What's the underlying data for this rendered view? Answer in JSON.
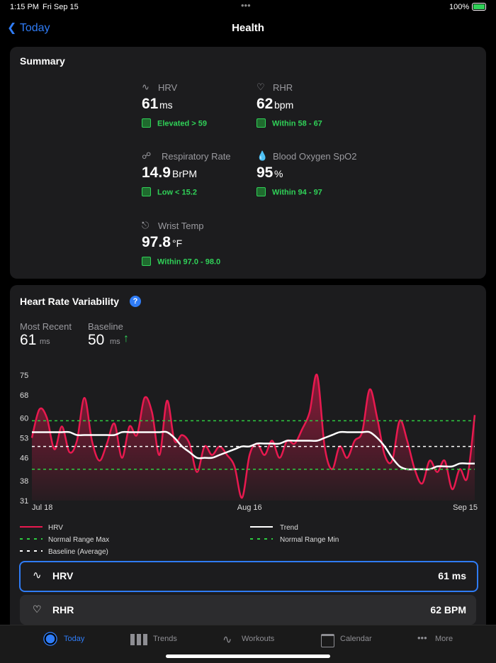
{
  "status_bar": {
    "time": "1:15 PM",
    "date": "Fri Sep 15",
    "battery": "100%"
  },
  "nav": {
    "back": "Today",
    "title": "Health"
  },
  "summary": {
    "title": "Summary",
    "metrics": [
      {
        "label": "HRV",
        "value": 61,
        "unit": "ms",
        "status": "Elevated > 59"
      },
      {
        "label": "RHR",
        "value": 62,
        "unit": "bpm",
        "status": "Within 58 - 67"
      },
      {
        "label": "Respiratory Rate",
        "value": 14.9,
        "unit": "BrPM",
        "status": "Low < 15.2"
      },
      {
        "label": "Blood Oxygen SpO2",
        "value": 95,
        "unit": "%",
        "status": "Within 94 - 97"
      },
      {
        "label": "Wrist Temp",
        "value": 97.8,
        "unit": "°F",
        "status": "Within 97.0 - 98.0"
      }
    ]
  },
  "hrv_card": {
    "title": "Heart Rate Variability",
    "help": "?",
    "most_recent": {
      "label": "Most Recent",
      "value": 61,
      "unit": "ms"
    },
    "baseline": {
      "label": "Baseline",
      "value": 50,
      "unit": "ms"
    }
  },
  "chart_data": {
    "type": "line",
    "categories": [
      "Jul 18",
      null,
      null,
      null,
      null,
      null,
      null,
      null,
      null,
      null,
      null,
      null,
      null,
      null,
      null,
      null,
      null,
      null,
      null,
      null,
      null,
      null,
      null,
      null,
      null,
      null,
      null,
      null,
      null,
      "Aug 16",
      null,
      null,
      null,
      null,
      null,
      null,
      null,
      null,
      null,
      null,
      null,
      null,
      null,
      null,
      null,
      null,
      null,
      null,
      null,
      null,
      null,
      null,
      null,
      null,
      null,
      null,
      null,
      null,
      null,
      "Sep 15"
    ],
    "series": [
      {
        "name": "HRV",
        "color": "#e8194f",
        "values": [
          53,
          63,
          60,
          49,
          57,
          48,
          52,
          67,
          52,
          45,
          51,
          58,
          46,
          57,
          54,
          67,
          62,
          47,
          66,
          52,
          54,
          51,
          41,
          50,
          47,
          50,
          47,
          43,
          32,
          47,
          51,
          47,
          52,
          46,
          52,
          51,
          56,
          62,
          75,
          50,
          42,
          50,
          46,
          52,
          55,
          70,
          60,
          47,
          45,
          59,
          52,
          42,
          37,
          45,
          41,
          45,
          35,
          42,
          39,
          61
        ]
      },
      {
        "name": "Trend",
        "color": "#ffffff",
        "values": [
          55,
          55,
          55,
          55,
          55,
          55,
          54,
          54,
          54,
          54,
          54,
          54,
          55,
          55,
          55,
          55,
          55,
          55,
          55,
          53,
          50,
          48,
          46,
          46,
          46,
          47,
          48,
          49,
          50,
          50,
          51,
          51,
          51,
          51,
          52,
          52,
          52,
          52,
          52,
          53,
          54,
          55,
          55,
          55,
          55,
          55,
          53,
          50,
          46,
          43,
          42,
          42,
          42,
          42,
          43,
          43,
          43,
          44,
          44,
          44
        ]
      }
    ],
    "reference_lines": [
      {
        "name": "Normal Range Max",
        "value": 59,
        "color": "#2ecc40"
      },
      {
        "name": "Normal Range Min",
        "value": 42,
        "color": "#2ecc40"
      },
      {
        "name": "Baseline (Average)",
        "value": 50,
        "color": "#ffffff"
      }
    ],
    "ylim": [
      31,
      75
    ],
    "yticks": [
      31,
      38,
      46,
      53,
      60,
      68,
      75
    ]
  },
  "rows": [
    {
      "label": "HRV",
      "value": "61 ms"
    },
    {
      "label": "RHR",
      "value": "62 BPM"
    }
  ],
  "tab_bar": [
    "Today",
    "Trends",
    "Workouts",
    "Calendar",
    "More"
  ]
}
